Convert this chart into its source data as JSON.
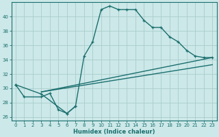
{
  "xlabel": "Humidex (Indice chaleur)",
  "bg_color": "#cce8e8",
  "grid_color": "#aacccc",
  "line_color": "#1a6e6e",
  "xlim": [
    -0.5,
    23.5
  ],
  "ylim": [
    25.5,
    42.0
  ],
  "xticks": [
    0,
    1,
    2,
    3,
    4,
    5,
    6,
    7,
    8,
    9,
    10,
    11,
    12,
    13,
    14,
    15,
    16,
    17,
    18,
    19,
    20,
    21,
    22,
    23
  ],
  "yticks": [
    26,
    28,
    30,
    32,
    34,
    36,
    38,
    40
  ],
  "main_curve": {
    "x": [
      0,
      3,
      6,
      7,
      8,
      9,
      10,
      11,
      12,
      13,
      14,
      15,
      16,
      17,
      18,
      19,
      20,
      21,
      22,
      23
    ],
    "y": [
      30.5,
      29.2,
      26.5,
      27.5,
      34.5,
      36.5,
      41.0,
      41.5,
      41.0,
      41.0,
      41.0,
      39.5,
      38.5,
      38.5,
      37.2,
      36.5,
      35.3,
      34.5,
      34.3,
      34.3
    ]
  },
  "left_loop": {
    "x": [
      0,
      1,
      3,
      4,
      5,
      6,
      7
    ],
    "y": [
      30.5,
      28.8,
      28.8,
      29.3,
      27.0,
      26.5,
      27.5
    ]
  },
  "straight_line1": {
    "x": [
      3,
      23
    ],
    "y": [
      29.5,
      34.3
    ]
  },
  "straight_line2": {
    "x": [
      3,
      23
    ],
    "y": [
      29.5,
      33.3
    ]
  }
}
